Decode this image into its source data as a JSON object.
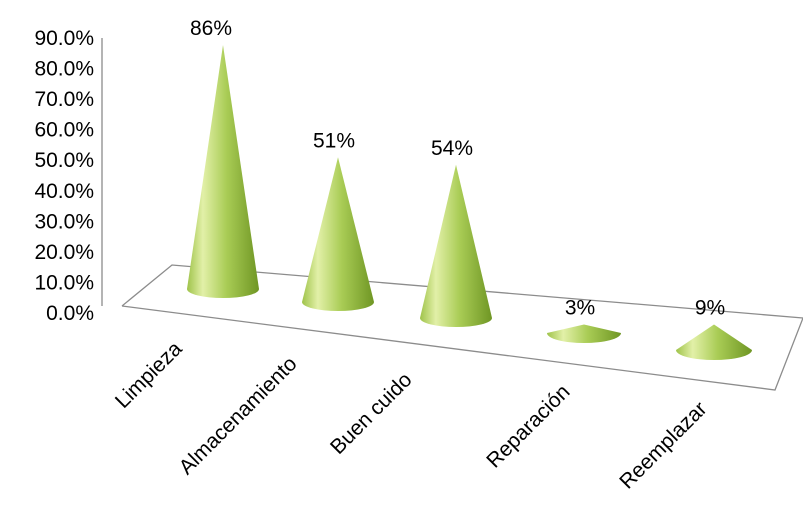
{
  "chart_data": {
    "type": "bar",
    "style": "3d-cone",
    "categories": [
      "Limpieza",
      "Almacenamiento",
      "Buen cuido",
      "Reparación",
      "Reemplazar"
    ],
    "values": [
      86,
      51,
      54,
      3,
      9
    ],
    "data_labels": [
      "86%",
      "51%",
      "54%",
      "3%",
      "9%"
    ],
    "y_ticks": [
      "0.0%",
      "10.0%",
      "20.0%",
      "30.0%",
      "40.0%",
      "50.0%",
      "60.0%",
      "70.0%",
      "80.0%",
      "90.0%"
    ],
    "ylim": [
      0,
      90
    ],
    "title": "",
    "xlabel": "",
    "ylabel": "",
    "legend": "none",
    "grid": false,
    "colors": {
      "cone_light": "#e2f0a8",
      "cone_mid": "#a9cc55",
      "cone_dark": "#6f9624",
      "axis": "#8c8c8c"
    }
  }
}
